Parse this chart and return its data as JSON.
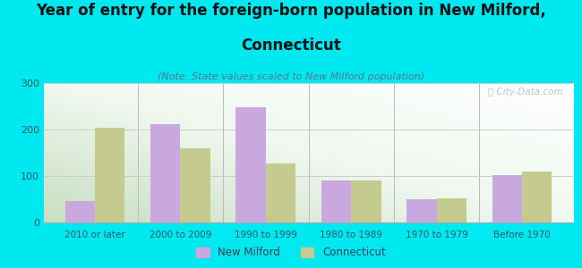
{
  "title_line1": "Year of entry for the foreign-born population in New Milford,",
  "title_line2": "Connecticut",
  "subtitle": "(Note: State values scaled to New Milford population)",
  "categories": [
    "2010 or later",
    "2000 to 2009",
    "1990 to 1999",
    "1980 to 1989",
    "1970 to 1979",
    "Before 1970"
  ],
  "new_milford": [
    47,
    212,
    248,
    91,
    50,
    101
  ],
  "connecticut": [
    203,
    160,
    126,
    91,
    52,
    110
  ],
  "bar_color_milford": "#c9a8e0",
  "bar_color_ct": "#c5cb8e",
  "background_color": "#00e8f0",
  "ylim": [
    0,
    300
  ],
  "yticks": [
    0,
    100,
    200,
    300
  ],
  "watermark": "City-Data.com",
  "legend_milford": "New Milford",
  "legend_ct": "Connecticut",
  "title_fontsize": 12,
  "subtitle_fontsize": 8,
  "bar_width": 0.35
}
